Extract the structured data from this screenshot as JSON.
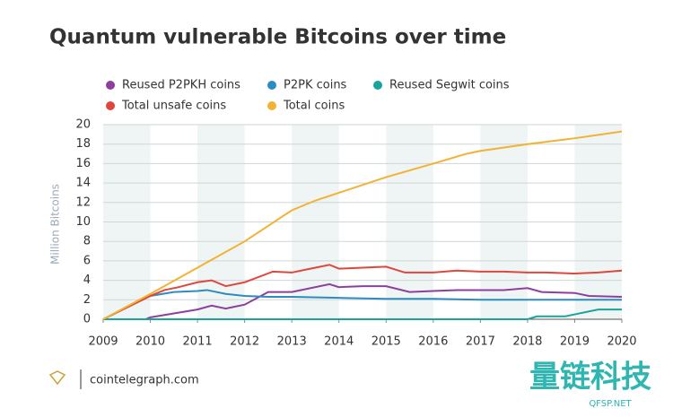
{
  "chart_data": {
    "type": "line",
    "title": "Quantum vulnerable Bitcoins over time",
    "y_label": "Million Bitcoins",
    "xlim": [
      2009,
      2020
    ],
    "xticks": [
      2009,
      2010,
      2011,
      2012,
      2013,
      2014,
      2015,
      2016,
      2017,
      2018,
      2019,
      2020
    ],
    "ylim": [
      0,
      20
    ],
    "yticks": [
      0,
      2,
      4,
      6,
      8,
      10,
      12,
      14,
      16,
      18,
      20
    ],
    "grid": true,
    "series": [
      {
        "name": "Reused P2PKH coins",
        "color": "#8e3f9e",
        "x": [
          2009,
          2009.9,
          2010,
          2010.5,
          2011,
          2011.3,
          2011.6,
          2012,
          2012.5,
          2013,
          2013.8,
          2014,
          2014.5,
          2015,
          2015.5,
          2016,
          2016.5,
          2017,
          2017.5,
          2018,
          2018.3,
          2019,
          2019.3,
          2020
        ],
        "values": [
          0,
          0,
          0.2,
          0.6,
          1.0,
          1.4,
          1.1,
          1.5,
          2.8,
          2.8,
          3.6,
          3.3,
          3.4,
          3.4,
          2.8,
          2.9,
          3.0,
          3.0,
          3.0,
          3.2,
          2.8,
          2.7,
          2.4,
          2.3
        ]
      },
      {
        "name": "P2PK coins",
        "color": "#2e8bc0",
        "x": [
          2009,
          2010,
          2010.5,
          2011,
          2011.2,
          2011.6,
          2012,
          2012.5,
          2013,
          2014,
          2015,
          2016,
          2017,
          2018,
          2019,
          2020
        ],
        "values": [
          0,
          2.4,
          2.8,
          2.9,
          3.0,
          2.6,
          2.4,
          2.3,
          2.3,
          2.2,
          2.1,
          2.1,
          2.0,
          2.0,
          2.0,
          2.0
        ]
      },
      {
        "name": "Reused Segwit coins",
        "color": "#1aa39a",
        "x": [
          2009,
          2017.5,
          2018,
          2018.2,
          2018.8,
          2019,
          2019.5,
          2020
        ],
        "values": [
          0,
          0,
          0,
          0.3,
          0.3,
          0.5,
          1.0,
          1.0
        ]
      },
      {
        "name": "Total unsafe coins",
        "color": "#e0463c",
        "x": [
          2009,
          2010,
          2010.3,
          2010.6,
          2011,
          2011.3,
          2011.6,
          2012,
          2012.6,
          2013,
          2013.3,
          2013.8,
          2014,
          2014.5,
          2015,
          2015.4,
          2016,
          2016.5,
          2017,
          2017.5,
          2018,
          2018.4,
          2019,
          2019.5,
          2020
        ],
        "values": [
          0,
          2.4,
          3.0,
          3.3,
          3.8,
          4.0,
          3.4,
          3.8,
          4.9,
          4.8,
          5.1,
          5.6,
          5.2,
          5.3,
          5.4,
          4.8,
          4.8,
          5.0,
          4.9,
          4.9,
          4.8,
          4.8,
          4.7,
          4.8,
          5.0
        ]
      },
      {
        "name": "Total coins",
        "color": "#f2b233",
        "x": [
          2009,
          2010,
          2011,
          2012,
          2012.5,
          2013,
          2013.5,
          2014,
          2015,
          2016,
          2016.7,
          2017,
          2018,
          2019,
          2020
        ],
        "values": [
          0,
          2.6,
          5.3,
          8.0,
          9.6,
          11.2,
          12.2,
          13.0,
          14.6,
          16.0,
          17.0,
          17.3,
          18.0,
          18.6,
          19.3
        ]
      }
    ]
  },
  "footer": {
    "source": "cointelegraph.com"
  },
  "watermark": {
    "text": "量链科技",
    "sub": "QFSP.NET"
  }
}
